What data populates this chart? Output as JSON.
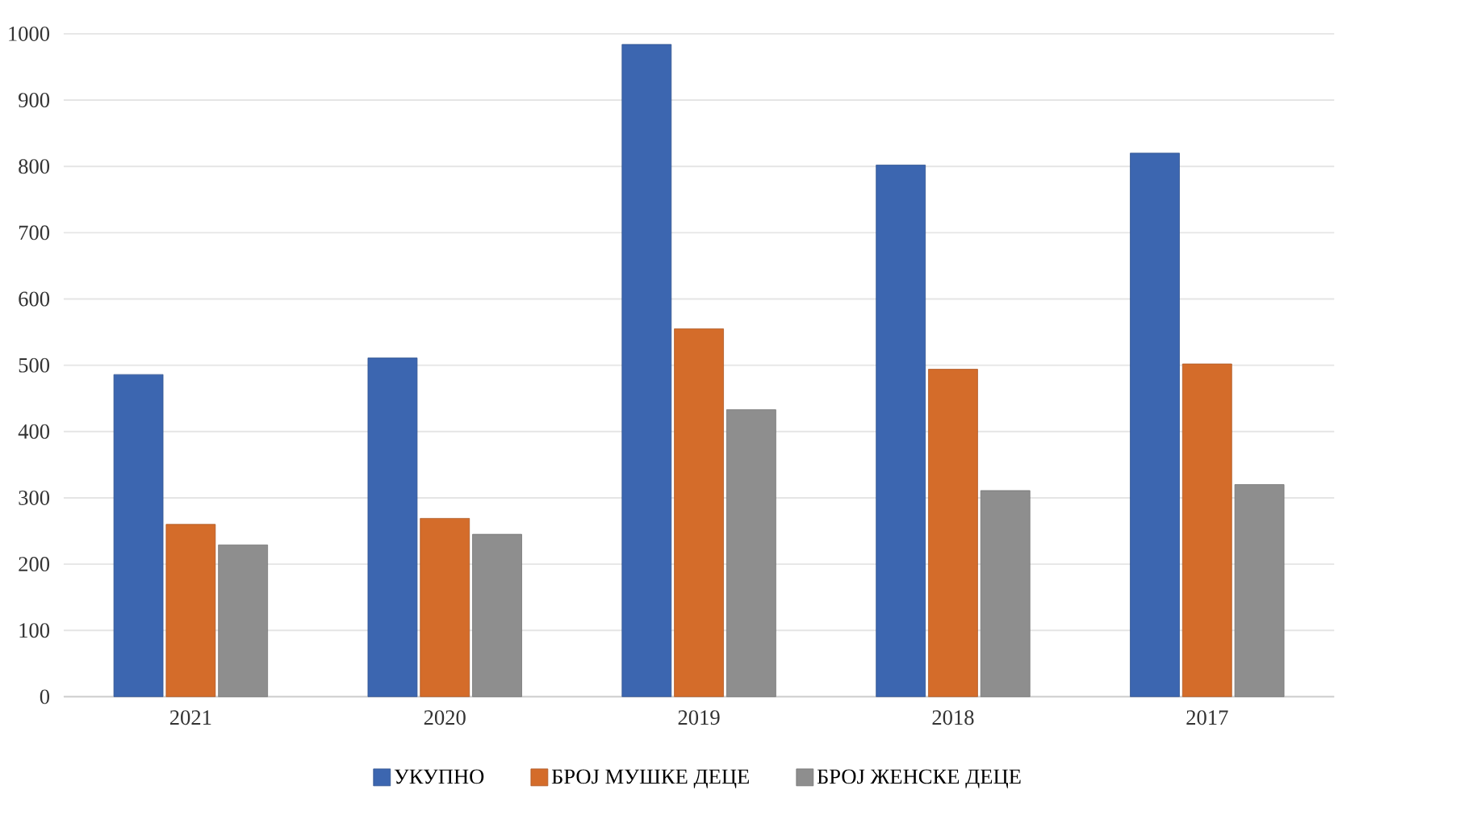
{
  "chart_data": {
    "type": "bar",
    "categories": [
      "2021",
      "2020",
      "2019",
      "2018",
      "2017"
    ],
    "series": [
      {
        "name": "УКУПНО",
        "color": "#3c66b0",
        "values": [
          486,
          511,
          984,
          802,
          820
        ]
      },
      {
        "name": "БРОЈ МУШКЕ ДЕЦЕ",
        "color": "#d46c2a",
        "values": [
          260,
          269,
          555,
          494,
          502
        ]
      },
      {
        "name": "БРОЈ ЖЕНСКЕ ДЕЦЕ",
        "color": "#8e8e8e",
        "values": [
          229,
          245,
          433,
          311,
          320
        ]
      }
    ],
    "ylim": [
      0,
      1000
    ],
    "yticks": [
      0,
      100,
      200,
      300,
      400,
      500,
      600,
      700,
      800,
      900,
      1000
    ],
    "grid": "y",
    "legend": "bottom"
  }
}
